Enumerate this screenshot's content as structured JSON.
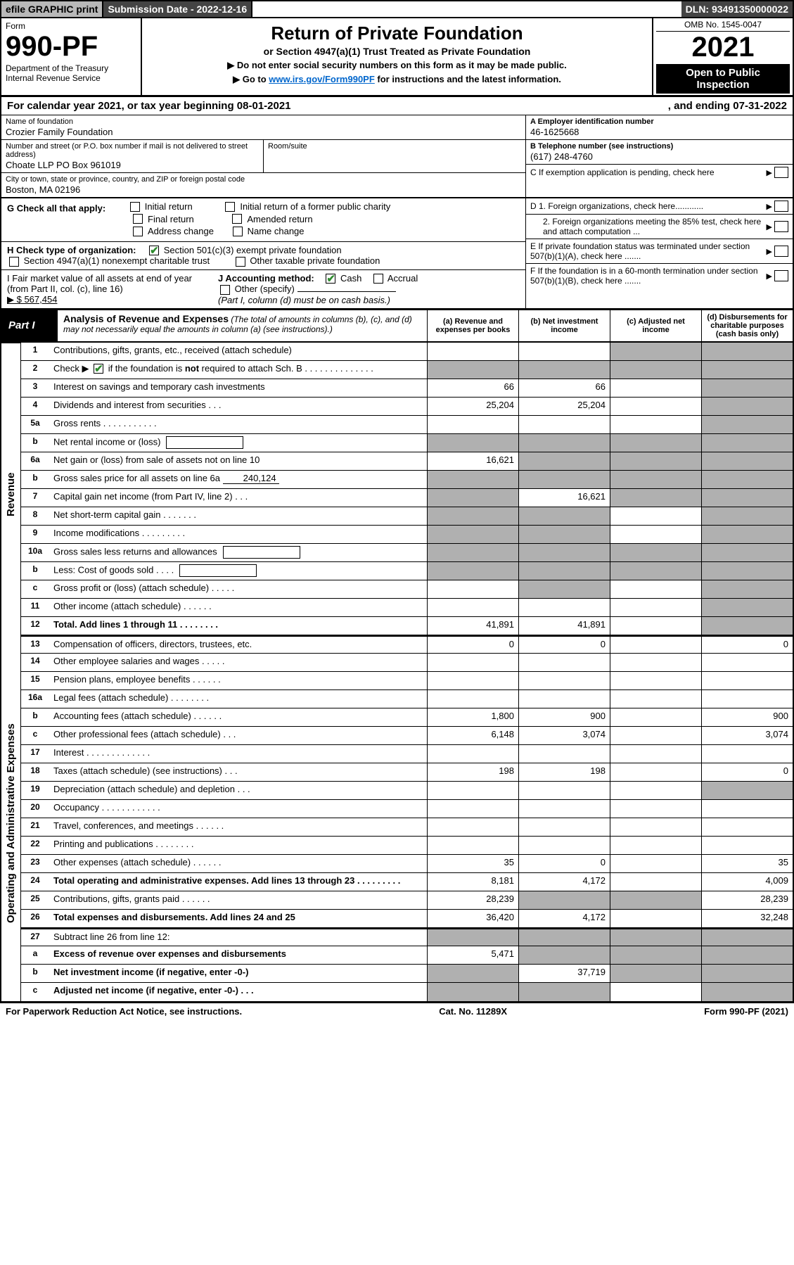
{
  "colors": {
    "bg": "#ffffff",
    "text": "#000000",
    "header_dark": "#444444",
    "header_grey": "#b8b8b8",
    "shade": "#b0b0b0",
    "link": "#0066cc",
    "check_green": "#2e8b2e"
  },
  "topbar": {
    "efile": "efile GRAPHIC print",
    "submission": "Submission Date - 2022-12-16",
    "dln": "DLN: 93491350000022"
  },
  "header": {
    "form_word": "Form",
    "form_no": "990-PF",
    "dept": "Department of the Treasury",
    "irs": "Internal Revenue Service",
    "title": "Return of Private Foundation",
    "subtitle": "or Section 4947(a)(1) Trust Treated as Private Foundation",
    "note1": "▶ Do not enter social security numbers on this form as it may be made public.",
    "note2_pre": "▶ Go to ",
    "note2_link": "www.irs.gov/Form990PF",
    "note2_post": " for instructions and the latest information.",
    "omb": "OMB No. 1545-0047",
    "year": "2021",
    "open_public_l1": "Open to Public",
    "open_public_l2": "Inspection"
  },
  "calendar": {
    "line_a": "For calendar year 2021, or tax year beginning 08-01-2021",
    "line_b": ", and ending 07-31-2022"
  },
  "entity": {
    "name_lbl": "Name of foundation",
    "name": "Crozier Family Foundation",
    "addr_lbl": "Number and street (or P.O. box number if mail is not delivered to street address)",
    "addr": "Choate LLP PO Box 961019",
    "room_lbl": "Room/suite",
    "city_lbl": "City or town, state or province, country, and ZIP or foreign postal code",
    "city": "Boston, MA  02196"
  },
  "right_info": {
    "a_lbl": "A Employer identification number",
    "a_val": "46-1625668",
    "b_lbl": "B Telephone number (see instructions)",
    "b_val": "(617) 248-4760",
    "c_lbl": "C If exemption application is pending, check here",
    "d1": "D 1. Foreign organizations, check here............",
    "d2": "2. Foreign organizations meeting the 85% test, check here and attach computation ...",
    "e": "E  If private foundation status was terminated under section 507(b)(1)(A), check here .......",
    "f": "F  If the foundation is in a 60-month termination under section 507(b)(1)(B), check here ......."
  },
  "g": {
    "label": "G Check all that apply:",
    "opts": [
      "Initial return",
      "Final return",
      "Address change",
      "Initial return of a former public charity",
      "Amended return",
      "Name change"
    ]
  },
  "h": {
    "label": "H Check type of organization:",
    "o1": "Section 501(c)(3) exempt private foundation",
    "o2": "Section 4947(a)(1) nonexempt charitable trust",
    "o3": "Other taxable private foundation"
  },
  "i": {
    "label": "I Fair market value of all assets at end of year (from Part II, col. (c), line 16)",
    "arrow_amt": "▶ $  567,454"
  },
  "j": {
    "label": "J Accounting method:",
    "cash": "Cash",
    "accrual": "Accrual",
    "other": "Other (specify)",
    "note": "(Part I, column (d) must be on cash basis.)"
  },
  "part1": {
    "label": "Part I",
    "title": "Analysis of Revenue and Expenses",
    "subtitle": "(The total of amounts in columns (b), (c), and (d) may not necessarily equal the amounts in column (a) (see instructions).)",
    "cols": {
      "a": "(a)  Revenue and expenses per books",
      "b": "(b)  Net investment income",
      "c": "(c)  Adjusted net income",
      "d": "(d)  Disbursements for charitable purposes (cash basis only)"
    }
  },
  "sections": {
    "revenue": "Revenue",
    "opex": "Operating and Administrative Expenses"
  },
  "rows": [
    {
      "n": "1",
      "desc": "Contributions, gifts, grants, etc., received (attach schedule)",
      "a": "",
      "b": "",
      "c": "shade",
      "d": "shade"
    },
    {
      "n": "2",
      "desc": "Check ▶ ☑ if the foundation is not required to attach Sch. B   .  .  .  .  .  .  .  .  .  .  .  .  .  .",
      "a": "shade",
      "b": "shade",
      "c": "shade",
      "d": "shade",
      "bold_not": true
    },
    {
      "n": "3",
      "desc": "Interest on savings and temporary cash investments",
      "a": "66",
      "b": "66",
      "c": "",
      "d": "shade"
    },
    {
      "n": "4",
      "desc": "Dividends and interest from securities   .   .   .",
      "a": "25,204",
      "b": "25,204",
      "c": "",
      "d": "shade"
    },
    {
      "n": "5a",
      "desc": "Gross rents   .   .   .   .   .   .   .   .   .   .   .",
      "a": "",
      "b": "",
      "c": "",
      "d": "shade"
    },
    {
      "n": "b",
      "desc": "Net rental income or (loss)",
      "a": "shade",
      "b": "shade",
      "c": "shade",
      "d": "shade",
      "minibox": true
    },
    {
      "n": "6a",
      "desc": "Net gain or (loss) from sale of assets not on line 10",
      "a": "16,621",
      "b": "shade",
      "c": "shade",
      "d": "shade"
    },
    {
      "n": "b",
      "desc": "Gross sales price for all assets on line 6a",
      "a": "shade",
      "b": "shade",
      "c": "shade",
      "d": "shade",
      "inline_amt": "240,124"
    },
    {
      "n": "7",
      "desc": "Capital gain net income (from Part IV, line 2)   .   .   .",
      "a": "shade",
      "b": "16,621",
      "c": "shade",
      "d": "shade"
    },
    {
      "n": "8",
      "desc": "Net short-term capital gain   .   .   .   .   .   .   .",
      "a": "shade",
      "b": "shade",
      "c": "",
      "d": "shade"
    },
    {
      "n": "9",
      "desc": "Income modifications   .   .   .   .   .   .   .   .   .",
      "a": "shade",
      "b": "shade",
      "c": "",
      "d": "shade"
    },
    {
      "n": "10a",
      "desc": "Gross sales less returns and allowances",
      "a": "shade",
      "b": "shade",
      "c": "shade",
      "d": "shade",
      "minibox": true
    },
    {
      "n": "b",
      "desc": "Less: Cost of goods sold   .   .   .   .",
      "a": "shade",
      "b": "shade",
      "c": "shade",
      "d": "shade",
      "minibox": true
    },
    {
      "n": "c",
      "desc": "Gross profit or (loss) (attach schedule)   .   .   .   .   .",
      "a": "",
      "b": "shade",
      "c": "",
      "d": "shade"
    },
    {
      "n": "11",
      "desc": "Other income (attach schedule)   .   .   .   .   .   .",
      "a": "",
      "b": "",
      "c": "",
      "d": "shade"
    },
    {
      "n": "12",
      "desc": "Total. Add lines 1 through 11   .   .   .   .   .   .   .   .",
      "a": "41,891",
      "b": "41,891",
      "c": "",
      "d": "shade",
      "bold": true,
      "section_end": "revenue"
    },
    {
      "n": "13",
      "desc": "Compensation of officers, directors, trustees, etc.",
      "a": "0",
      "b": "0",
      "c": "",
      "d": "0"
    },
    {
      "n": "14",
      "desc": "Other employee salaries and wages   .   .   .   .   .",
      "a": "",
      "b": "",
      "c": "",
      "d": ""
    },
    {
      "n": "15",
      "desc": "Pension plans, employee benefits   .   .   .   .   .   .",
      "a": "",
      "b": "",
      "c": "",
      "d": ""
    },
    {
      "n": "16a",
      "desc": "Legal fees (attach schedule)   .   .   .   .   .   .   .   .",
      "a": "",
      "b": "",
      "c": "",
      "d": ""
    },
    {
      "n": "b",
      "desc": "Accounting fees (attach schedule)   .   .   .   .   .   .",
      "a": "1,800",
      "b": "900",
      "c": "",
      "d": "900"
    },
    {
      "n": "c",
      "desc": "Other professional fees (attach schedule)   .   .   .",
      "a": "6,148",
      "b": "3,074",
      "c": "",
      "d": "3,074"
    },
    {
      "n": "17",
      "desc": "Interest   .   .   .   .   .   .   .   .   .   .   .   .   .",
      "a": "",
      "b": "",
      "c": "",
      "d": ""
    },
    {
      "n": "18",
      "desc": "Taxes (attach schedule) (see instructions)   .   .   .",
      "a": "198",
      "b": "198",
      "c": "",
      "d": "0"
    },
    {
      "n": "19",
      "desc": "Depreciation (attach schedule) and depletion   .   .   .",
      "a": "",
      "b": "",
      "c": "",
      "d": "shade"
    },
    {
      "n": "20",
      "desc": "Occupancy   .   .   .   .   .   .   .   .   .   .   .   .",
      "a": "",
      "b": "",
      "c": "",
      "d": ""
    },
    {
      "n": "21",
      "desc": "Travel, conferences, and meetings   .   .   .   .   .   .",
      "a": "",
      "b": "",
      "c": "",
      "d": ""
    },
    {
      "n": "22",
      "desc": "Printing and publications   .   .   .   .   .   .   .   .",
      "a": "",
      "b": "",
      "c": "",
      "d": ""
    },
    {
      "n": "23",
      "desc": "Other expenses (attach schedule)   .   .   .   .   .   .",
      "a": "35",
      "b": "0",
      "c": "",
      "d": "35"
    },
    {
      "n": "24",
      "desc": "Total operating and administrative expenses. Add lines 13 through 23   .   .   .   .   .   .   .   .   .",
      "a": "8,181",
      "b": "4,172",
      "c": "",
      "d": "4,009",
      "bold": true
    },
    {
      "n": "25",
      "desc": "Contributions, gifts, grants paid   .   .   .   .   .   .",
      "a": "28,239",
      "b": "shade",
      "c": "shade",
      "d": "28,239"
    },
    {
      "n": "26",
      "desc": "Total expenses and disbursements. Add lines 24 and 25",
      "a": "36,420",
      "b": "4,172",
      "c": "",
      "d": "32,248",
      "bold": true,
      "section_end": "opex"
    },
    {
      "n": "27",
      "desc": "Subtract line 26 from line 12:",
      "a": "shade",
      "b": "shade",
      "c": "shade",
      "d": "shade"
    },
    {
      "n": "a",
      "desc": "Excess of revenue over expenses and disbursements",
      "a": "5,471",
      "b": "shade",
      "c": "shade",
      "d": "shade",
      "bold": true
    },
    {
      "n": "b",
      "desc": "Net investment income (if negative, enter -0-)",
      "a": "shade",
      "b": "37,719",
      "c": "shade",
      "d": "shade",
      "bold": true
    },
    {
      "n": "c",
      "desc": "Adjusted net income (if negative, enter -0-)   .   .   .",
      "a": "shade",
      "b": "shade",
      "c": "",
      "d": "shade",
      "bold": true
    }
  ],
  "footer": {
    "left": "For Paperwork Reduction Act Notice, see instructions.",
    "mid": "Cat. No. 11289X",
    "right": "Form 990-PF (2021)"
  }
}
